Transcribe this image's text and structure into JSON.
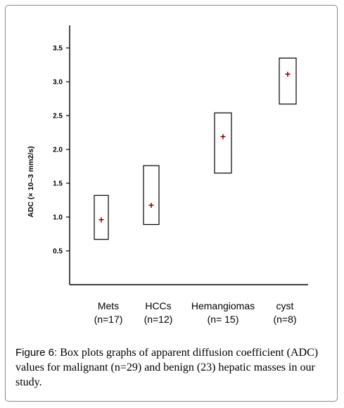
{
  "chart_data": {
    "type": "box",
    "ylabel": "ADC (× 10–3 mm2/s)",
    "yticks": [
      0.5,
      1.0,
      1.5,
      2.0,
      2.5,
      3.0,
      3.5
    ],
    "ytick_labels": [
      "0.5",
      "1.0",
      "1.5",
      "2.0",
      "2.5",
      "3.0",
      "3.5"
    ],
    "ylim": [
      0.0,
      3.85
    ],
    "categories": [
      {
        "name": "Mets",
        "n_label": "(n=17)",
        "low": 0.67,
        "high": 1.32,
        "mean": 0.96
      },
      {
        "name": "HCCs",
        "n_label": "(n=12)",
        "low": 0.89,
        "high": 1.76,
        "mean": 1.17
      },
      {
        "name": "Hemangiomas",
        "n_label": "(n= 15)",
        "low": 1.65,
        "high": 2.54,
        "mean": 2.19
      },
      {
        "name": "cyst",
        "n_label": "(n=8)",
        "low": 2.67,
        "high": 3.35,
        "mean": 3.11
      }
    ],
    "marker_color": "#8b0000",
    "grid": false,
    "legend": "none"
  },
  "caption": {
    "label": "Figure 6:",
    "text": " Box plots graphs of apparent diffusion coefficient (ADC) values for malignant (n=29) and benign (23) hepatic masses in our study."
  }
}
